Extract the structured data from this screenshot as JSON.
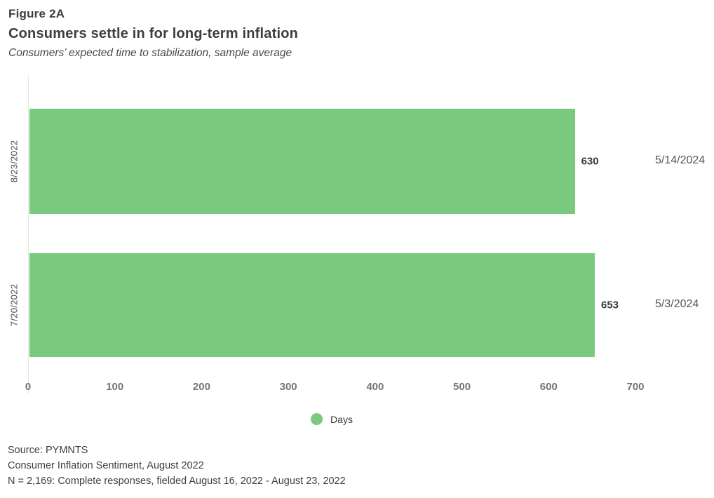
{
  "header": {
    "figure_label": "Figure 2A",
    "title": "Consumers settle in for long-term inflation",
    "subtitle": "Consumers’ expected time to stabilization, sample average"
  },
  "chart_data": {
    "type": "bar",
    "orientation": "horizontal",
    "categories": [
      "8/23/2022",
      "7/20/2022"
    ],
    "series": [
      {
        "name": "Days",
        "values": [
          630,
          653
        ]
      }
    ],
    "value_labels": [
      "630",
      "653"
    ],
    "annotations": [
      "5/14/2024",
      "5/3/2024"
    ],
    "xlim": [
      0,
      700
    ],
    "xticks": [
      0,
      100,
      200,
      300,
      400,
      500,
      600,
      700
    ],
    "bar_color": "#79c97f",
    "grid": false,
    "legend": {
      "label": "Days",
      "position": "bottom-center"
    }
  },
  "footer": {
    "lines": [
      "Source: PYMNTS",
      "Consumer Inflation Sentiment, August 2022",
      "N = 2,169: Complete responses, fielded August 16, 2022 - August 23, 2022"
    ]
  }
}
